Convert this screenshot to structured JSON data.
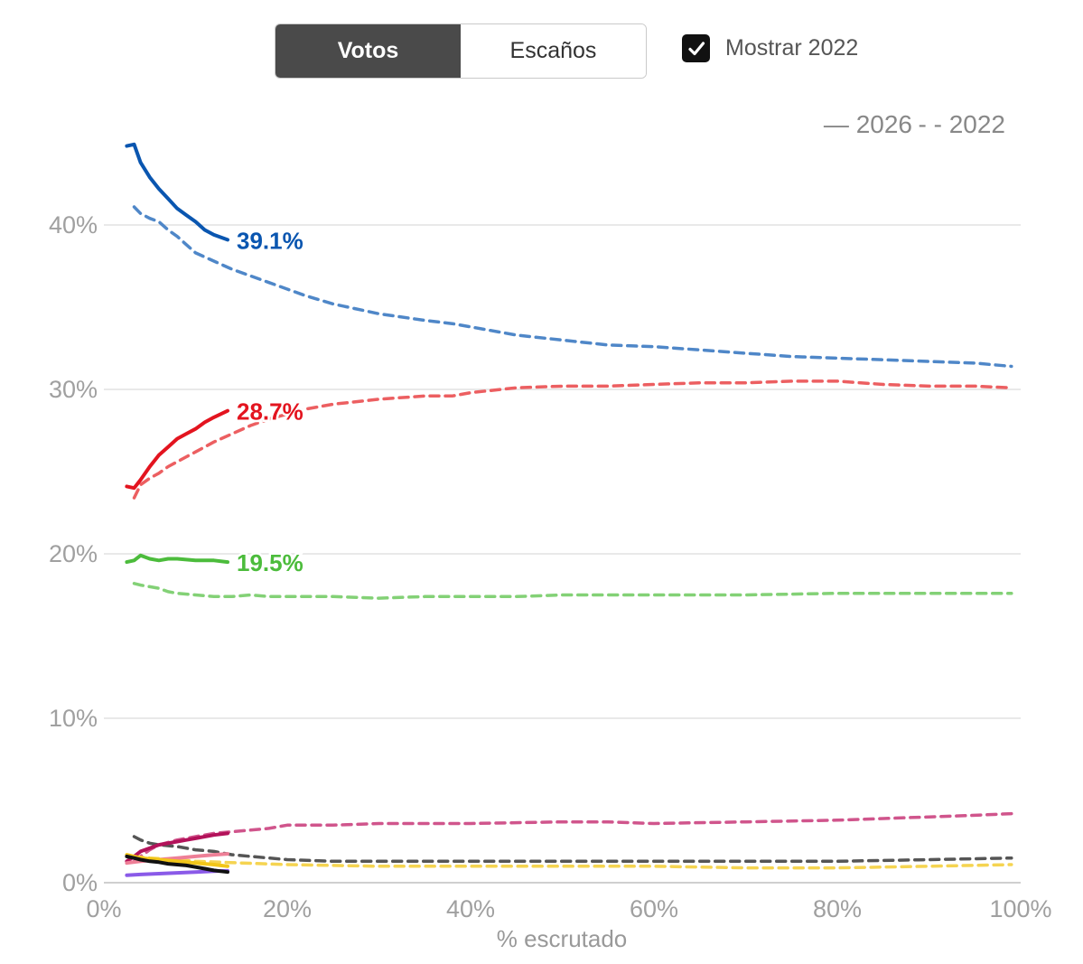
{
  "controls": {
    "tabs": [
      {
        "label": "Votos",
        "active": true
      },
      {
        "label": "Escaños",
        "active": false
      }
    ],
    "show_2022": {
      "label": "Mostrar 2022",
      "checked": true
    }
  },
  "legend": {
    "current_label": "— 2026",
    "previous_label": "- - 2022"
  },
  "chart_data": {
    "type": "line",
    "xlabel": "% escrutado",
    "ylabel": "",
    "xlim": [
      0,
      100
    ],
    "ylim": [
      0,
      50
    ],
    "x_ticks": [
      "0%",
      "20%",
      "40%",
      "60%",
      "80%",
      "100%"
    ],
    "y_ticks": [
      "0%",
      "10%",
      "20%",
      "30%",
      "40%"
    ],
    "grid": true,
    "series": [
      {
        "name": "azul 2026",
        "year": 2026,
        "color": "#0a56b0",
        "end_label": "39.1%",
        "x": [
          2.5,
          3.3,
          4,
          5,
          6,
          7,
          8,
          9,
          10,
          11,
          12,
          13.5
        ],
        "y": [
          44.8,
          44.9,
          43.8,
          42.9,
          42.2,
          41.6,
          41.0,
          40.6,
          40.2,
          39.7,
          39.4,
          39.1
        ]
      },
      {
        "name": "rojo 2026",
        "year": 2026,
        "color": "#e3141f",
        "end_label": "28.7%",
        "x": [
          2.5,
          3.3,
          4,
          5,
          6,
          7,
          8,
          9,
          10,
          11,
          12,
          13.5
        ],
        "y": [
          24.1,
          24.0,
          24.5,
          25.3,
          26.0,
          26.5,
          27.0,
          27.3,
          27.6,
          28.0,
          28.3,
          28.7
        ]
      },
      {
        "name": "verde 2026",
        "year": 2026,
        "color": "#4cbc3c",
        "end_label": "19.5%",
        "x": [
          2.5,
          3.3,
          4,
          5,
          6,
          7,
          8,
          9,
          10,
          11,
          12,
          13.5
        ],
        "y": [
          19.5,
          19.6,
          19.9,
          19.7,
          19.6,
          19.7,
          19.7,
          19.65,
          19.6,
          19.6,
          19.6,
          19.5
        ]
      },
      {
        "name": "magenta 2026",
        "year": 2026,
        "color": "#b3125a",
        "end_label": "",
        "x": [
          2.5,
          3.3,
          4,
          5,
          6,
          7,
          8,
          9,
          10,
          11,
          12,
          13.5
        ],
        "y": [
          1.3,
          1.6,
          1.9,
          2.1,
          2.3,
          2.4,
          2.5,
          2.6,
          2.7,
          2.8,
          2.9,
          3.0
        ]
      },
      {
        "name": "rosa 2026",
        "year": 2026,
        "color": "#ee7f97",
        "end_label": "",
        "x": [
          2.5,
          4,
          6,
          8,
          10,
          12,
          13.5
        ],
        "y": [
          1.2,
          1.3,
          1.4,
          1.5,
          1.6,
          1.7,
          1.75
        ]
      },
      {
        "name": "amarillo 2026",
        "year": 2026,
        "color": "#f2c619",
        "end_label": "",
        "x": [
          2.5,
          4,
          6,
          8,
          10,
          12,
          13.5
        ],
        "y": [
          1.7,
          1.5,
          1.4,
          1.3,
          1.2,
          1.1,
          1.0
        ]
      },
      {
        "name": "violeta 2026",
        "year": 2026,
        "color": "#8a5ae8",
        "end_label": "",
        "x": [
          2.5,
          4,
          6,
          8,
          10,
          12,
          13.5
        ],
        "y": [
          0.45,
          0.5,
          0.55,
          0.6,
          0.65,
          0.7,
          0.72
        ]
      },
      {
        "name": "negro 2026",
        "year": 2026,
        "color": "#111111",
        "end_label": "",
        "x": [
          2.5,
          3.3,
          4,
          5,
          6,
          7,
          8,
          9,
          10,
          11,
          12,
          13.5
        ],
        "y": [
          1.6,
          1.5,
          1.4,
          1.3,
          1.25,
          1.15,
          1.1,
          1.05,
          0.95,
          0.85,
          0.75,
          0.65
        ]
      },
      {
        "name": "azul 2022",
        "year": 2022,
        "color": "#4f87c8",
        "end_label": "",
        "x": [
          3.3,
          4,
          5,
          6,
          7,
          8,
          9,
          10,
          12,
          14,
          16,
          18,
          20,
          22,
          25,
          30,
          35,
          38,
          40,
          45,
          50,
          55,
          60,
          65,
          70,
          75,
          80,
          85,
          90,
          95,
          97,
          99
        ],
        "y": [
          41.1,
          40.7,
          40.4,
          40.2,
          39.7,
          39.3,
          38.8,
          38.3,
          37.8,
          37.3,
          36.9,
          36.5,
          36.1,
          35.7,
          35.2,
          34.6,
          34.2,
          34.0,
          33.8,
          33.3,
          33.0,
          32.7,
          32.6,
          32.4,
          32.2,
          32.0,
          31.9,
          31.8,
          31.7,
          31.6,
          31.5,
          31.4
        ]
      },
      {
        "name": "rojo 2022",
        "year": 2022,
        "color": "#ec5f61",
        "end_label": "",
        "x": [
          3.3,
          4,
          5,
          6,
          7,
          8,
          9,
          10,
          12,
          14,
          16,
          18,
          20,
          22,
          25,
          30,
          35,
          38,
          40,
          45,
          50,
          55,
          60,
          65,
          70,
          75,
          80,
          85,
          90,
          95,
          99
        ],
        "y": [
          23.4,
          24.2,
          24.6,
          24.9,
          25.3,
          25.6,
          25.9,
          26.2,
          26.8,
          27.3,
          27.8,
          28.2,
          28.5,
          28.8,
          29.1,
          29.4,
          29.6,
          29.6,
          29.8,
          30.1,
          30.2,
          30.2,
          30.3,
          30.4,
          30.4,
          30.5,
          30.5,
          30.3,
          30.2,
          30.2,
          30.1
        ]
      },
      {
        "name": "verde 2022",
        "year": 2022,
        "color": "#83d176",
        "end_label": "",
        "x": [
          3.3,
          4,
          5,
          6,
          7,
          8,
          10,
          12,
          14,
          16,
          18,
          20,
          25,
          30,
          35,
          40,
          45,
          50,
          60,
          70,
          80,
          90,
          99
        ],
        "y": [
          18.2,
          18.1,
          18.0,
          17.9,
          17.7,
          17.6,
          17.5,
          17.4,
          17.4,
          17.5,
          17.4,
          17.4,
          17.4,
          17.3,
          17.4,
          17.4,
          17.4,
          17.5,
          17.5,
          17.5,
          17.6,
          17.6,
          17.6
        ]
      },
      {
        "name": "magenta 2022",
        "year": 2022,
        "color": "#d0558c",
        "end_label": "",
        "x": [
          3.3,
          4,
          5,
          6,
          8,
          10,
          12,
          14,
          16,
          18,
          20,
          25,
          30,
          40,
          50,
          55,
          60,
          70,
          80,
          85,
          90,
          95,
          99
        ],
        "y": [
          1.3,
          1.6,
          2.0,
          2.3,
          2.6,
          2.8,
          3.0,
          3.1,
          3.2,
          3.3,
          3.5,
          3.5,
          3.6,
          3.6,
          3.7,
          3.7,
          3.6,
          3.7,
          3.8,
          3.9,
          4.0,
          4.1,
          4.2
        ]
      },
      {
        "name": "gris 2022",
        "year": 2022,
        "color": "#555555",
        "end_label": "",
        "x": [
          3.3,
          4,
          5,
          6,
          8,
          10,
          12,
          14,
          16,
          18,
          20,
          25,
          30,
          40,
          50,
          60,
          70,
          80,
          90,
          99
        ],
        "y": [
          2.8,
          2.6,
          2.4,
          2.3,
          2.2,
          2.0,
          1.9,
          1.7,
          1.6,
          1.5,
          1.4,
          1.3,
          1.3,
          1.3,
          1.3,
          1.3,
          1.3,
          1.3,
          1.4,
          1.5
        ]
      },
      {
        "name": "amarillo 2022",
        "year": 2022,
        "color": "#f5d451",
        "end_label": "",
        "x": [
          3.3,
          5,
          8,
          10,
          15,
          20,
          30,
          40,
          50,
          60,
          70,
          80,
          90,
          99
        ],
        "y": [
          1.6,
          1.5,
          1.4,
          1.3,
          1.2,
          1.1,
          1.0,
          1.0,
          1.0,
          1.0,
          0.9,
          0.9,
          1.0,
          1.1
        ]
      }
    ]
  }
}
